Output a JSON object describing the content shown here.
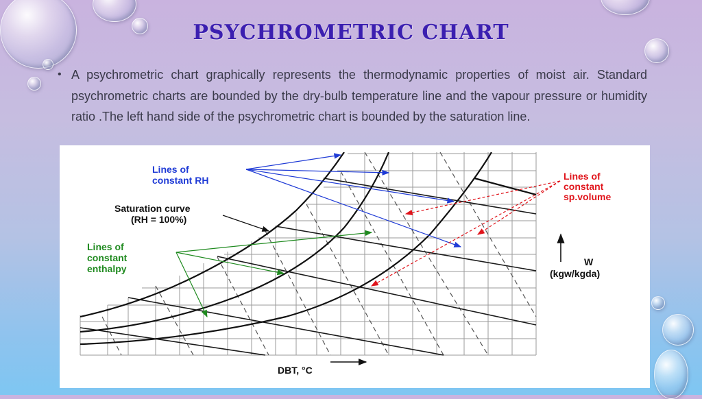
{
  "slide": {
    "title": "PSYCHROMETRIC CHART",
    "bullet": "A psychrometric chart graphically represents the thermodynamic properties of moist air. Standard psychrometric charts are bounded by the dry-bulb temperature line and the vapour pressure or humidity ratio .The left hand side of the psychrometric chart is bounded by the saturation line."
  },
  "diagram": {
    "rh_label_1": "Lines of",
    "rh_label_2": "constant RH",
    "sat_label_1": "Saturation curve",
    "sat_label_2": "(RH = 100%)",
    "enthalpy_label_1": "Lines of",
    "enthalpy_label_2": "constant",
    "enthalpy_label_3": "enthalpy",
    "spvol_label_1": "Lines of",
    "spvol_label_2": "constant",
    "spvol_label_3": "sp.volume",
    "w_label_1": "W",
    "w_label_2": "(kgw/kgda)",
    "dbt_label": "DBT, °C",
    "colors": {
      "rh": "#1f3bd6",
      "enthalpy": "#1f8a1f",
      "spvol": "#e0141b",
      "title": "#3b1fb0"
    }
  }
}
